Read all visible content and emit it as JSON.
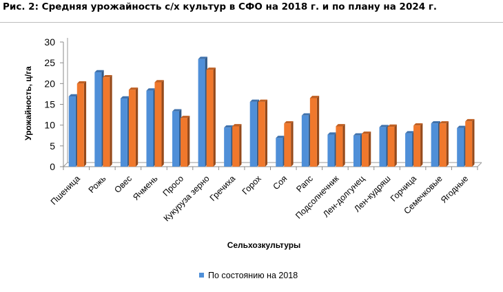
{
  "figure": {
    "title": "Рис. 2: Средняя урожайность с/х культур в СФО на 2018 г. и по плану на 2024 г."
  },
  "chart_data": {
    "type": "bar",
    "categories": [
      "Пшеница",
      "Рожь",
      "Овес",
      "Ячмень",
      "Просо",
      "Кукуруза зерно",
      "Гречиха",
      "Горох",
      "Соя",
      "Рапс",
      "Подсолнечник",
      "Лен-долгунец",
      "Лен-кудряш",
      "Горчица",
      "Семечковые",
      "Ягодные"
    ],
    "series": [
      {
        "name": "По состоянию на 2018",
        "color": "#4f8fd8",
        "values": [
          16.9,
          22.7,
          16.4,
          18.3,
          13.3,
          25.9,
          9.4,
          15.6,
          6.9,
          12.3,
          7.7,
          7.5,
          9.5,
          8.0,
          10.4,
          9.3
        ]
      },
      {
        "color": "#f0782c",
        "values": [
          20.0,
          21.5,
          18.5,
          20.3,
          11.7,
          23.3,
          9.7,
          15.6,
          10.4,
          16.5,
          9.7,
          7.9,
          9.6,
          9.9,
          10.4,
          10.9
        ]
      }
    ],
    "ylabel": "Урожайность, ц/га",
    "xlabel": "Сельхозкультуры",
    "ylim": [
      0,
      30
    ],
    "yticks": [
      0,
      5,
      10,
      15,
      20,
      25,
      30
    ],
    "grid": false,
    "legend": "bottom"
  }
}
